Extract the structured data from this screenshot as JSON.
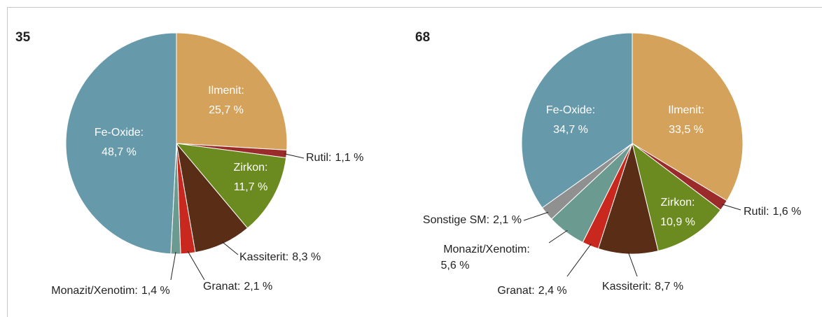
{
  "chart_data": [
    {
      "type": "pie",
      "title": "35",
      "categories": [
        "Ilmenit:",
        "Rutil:",
        "Zirkon:",
        "Kassiterit:",
        "Granat:",
        "Monazit/Xenotim:",
        "Fe-Oxide:"
      ],
      "values": [
        25.7,
        1.1,
        11.7,
        8.3,
        2.1,
        1.4,
        48.7
      ],
      "value_labels": [
        "25,7 %",
        "1,1 %",
        "11,7 %",
        "8,3 %",
        "2,1 %",
        "1,4 %",
        "48,7 %"
      ],
      "colors": [
        "#d4a25a",
        "#9b2a2a",
        "#6b8a1f",
        "#5a2d16",
        "#c8281e",
        "#6b9a90",
        "#6699aa"
      ]
    },
    {
      "type": "pie",
      "title": "68",
      "categories": [
        "Ilmenit:",
        "Rutil:",
        "Zirkon:",
        "Kassiterit:",
        "Granat:",
        "Monazit/Xenotim:",
        "Sonstige SM:",
        "Fe-Oxide:"
      ],
      "values": [
        33.5,
        1.6,
        10.9,
        8.7,
        2.4,
        5.6,
        2.1,
        34.7
      ],
      "value_labels": [
        "33,5 %",
        "1,6 %",
        "10,9 %",
        "8,7 %",
        "2,4 %",
        "5,6 %",
        "2,1 %",
        "34,7 %"
      ],
      "colors": [
        "#d4a25a",
        "#9b2a2a",
        "#6b8a1f",
        "#5a2d16",
        "#c8281e",
        "#6b9a90",
        "#909090",
        "#6699aa"
      ]
    }
  ]
}
